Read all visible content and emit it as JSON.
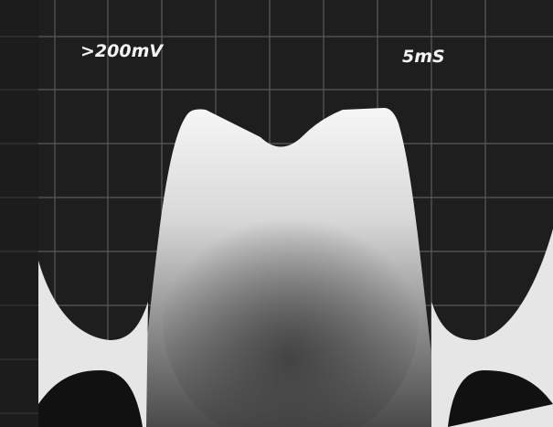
{
  "scope": {
    "volts_per_div": ">200mV",
    "time_per_div": "5mS"
  }
}
